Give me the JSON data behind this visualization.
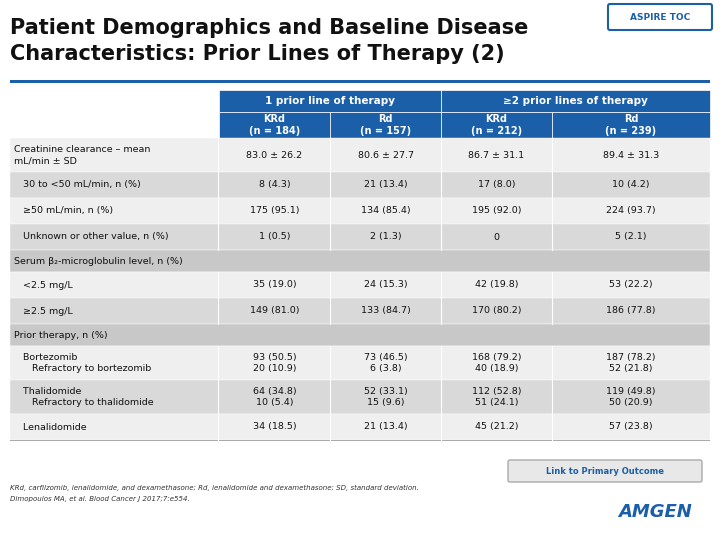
{
  "title_line1": "Patient Demographics and Baseline Disease",
  "title_line2": "Characteristics: Prior Lines of Therapy (2)",
  "title_fontsize": 15,
  "title_color": "#111111",
  "bg_color": "#ffffff",
  "header1_text": "1 prior line of therapy",
  "header2_text": "≥2 prior lines of therapy",
  "header_bg": "#1a5fa8",
  "header_text_color": "#ffffff",
  "col_headers": [
    "KRd\n(n = 184)",
    "Rd\n(n = 157)",
    "KRd\n(n = 212)",
    "Rd\n(n = 239)"
  ],
  "aspire_toc_color": "#1a5fa8",
  "stripe1": "#efefef",
  "stripe2": "#d9d9d9",
  "section_bg": "#c8c8c8",
  "separator_color": "#ffffff",
  "rows": [
    {
      "label": "Creatinine clearance – mean\nmL/min ± SD",
      "indent": 0,
      "section": false,
      "multiline": true,
      "values": [
        "83.0 ± 26.2",
        "80.6 ± 27.7",
        "86.7 ± 31.1",
        "89.4 ± 31.3"
      ],
      "bg": "stripe1"
    },
    {
      "label": "   30 to <50 mL/min, n (%)",
      "indent": 1,
      "section": false,
      "multiline": false,
      "values": [
        "8 (4.3)",
        "21 (13.4)",
        "17 (8.0)",
        "10 (4.2)"
      ],
      "bg": "stripe2"
    },
    {
      "label": "   ≥50 mL/min, n (%)",
      "indent": 1,
      "section": false,
      "multiline": false,
      "values": [
        "175 (95.1)",
        "134 (85.4)",
        "195 (92.0)",
        "224 (93.7)"
      ],
      "bg": "stripe1"
    },
    {
      "label": "   Unknown or other value, n (%)",
      "indent": 1,
      "section": false,
      "multiline": false,
      "values": [
        "1 (0.5)",
        "2 (1.3)",
        "0",
        "5 (2.1)"
      ],
      "bg": "stripe2"
    },
    {
      "label": "Serum β₂-microglobulin level, n (%)",
      "indent": 0,
      "section": true,
      "multiline": false,
      "values": [
        "",
        "",
        "",
        ""
      ],
      "bg": "section"
    },
    {
      "label": "   <2.5 mg/L",
      "indent": 1,
      "section": false,
      "multiline": false,
      "values": [
        "35 (19.0)",
        "24 (15.3)",
        "42 (19.8)",
        "53 (22.2)"
      ],
      "bg": "stripe1"
    },
    {
      "label": "   ≥2.5 mg/L",
      "indent": 1,
      "section": false,
      "multiline": false,
      "values": [
        "149 (81.0)",
        "133 (84.7)",
        "170 (80.2)",
        "186 (77.8)"
      ],
      "bg": "stripe2"
    },
    {
      "label": "Prior therapy, n (%)",
      "indent": 0,
      "section": true,
      "multiline": false,
      "values": [
        "",
        "",
        "",
        ""
      ],
      "bg": "section"
    },
    {
      "label": "   Bortezomib\n      Refractory to bortezomib",
      "indent": 1,
      "section": false,
      "multiline": true,
      "values": [
        "93 (50.5)\n20 (10.9)",
        "73 (46.5)\n6 (3.8)",
        "168 (79.2)\n40 (18.9)",
        "187 (78.2)\n52 (21.8)"
      ],
      "bg": "stripe1"
    },
    {
      "label": "   Thalidomide\n      Refractory to thalidomide",
      "indent": 1,
      "section": false,
      "multiline": true,
      "values": [
        "64 (34.8)\n10 (5.4)",
        "52 (33.1)\n15 (9.6)",
        "112 (52.8)\n51 (24.1)",
        "119 (49.8)\n50 (20.9)"
      ],
      "bg": "stripe2"
    },
    {
      "label": "   Lenalidomide",
      "indent": 1,
      "section": false,
      "multiline": false,
      "values": [
        "34 (18.5)",
        "21 (13.4)",
        "45 (21.2)",
        "57 (23.8)"
      ],
      "bg": "stripe1"
    }
  ],
  "footnote1": "KRd, carfilzomib, lenalidomide, and dexamethasone; Rd, lenalidomide and dexamethasone; SD, standard deviation.",
  "footnote2": "Dimopoulos MA, et al. Blood Cancer J 2017;7:e554.",
  "link_text": "Link to Primary Outcome",
  "amgen_color": "#1a5fa8"
}
